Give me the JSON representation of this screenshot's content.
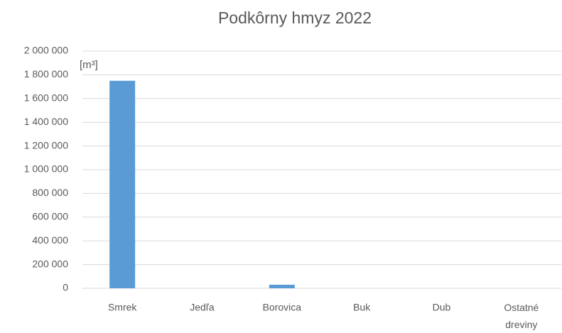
{
  "chart_data": {
    "type": "bar",
    "title": "Podkôrny hmyz 2022",
    "y_label": "[m³]",
    "categories": [
      "Smrek",
      "Jedľa",
      "Borovica",
      "Buk",
      "Dub",
      "Ostatné dreviny"
    ],
    "values": [
      1750000,
      0,
      30000,
      0,
      0,
      0
    ],
    "color": "#5b9bd5",
    "ylim": [
      0,
      2000000
    ],
    "yticks": [
      0,
      {
        "value": 200000,
        "label": "200 000"
      },
      {
        "value": 400000,
        "label": "400 000"
      },
      {
        "value": 600000,
        "label": "600 000"
      },
      {
        "value": 800000,
        "label": "800 000"
      },
      {
        "value": 1000000,
        "label": "1 000 000"
      },
      {
        "value": 1200000,
        "label": "1 200 000"
      },
      {
        "value": 1400000,
        "label": "1 400 000"
      },
      {
        "value": 1600000,
        "label": "1 600 000"
      },
      {
        "value": 1800000,
        "label": "1 800 000"
      },
      {
        "value": 2000000,
        "label": "2 000 000"
      }
    ],
    "grid": true
  }
}
